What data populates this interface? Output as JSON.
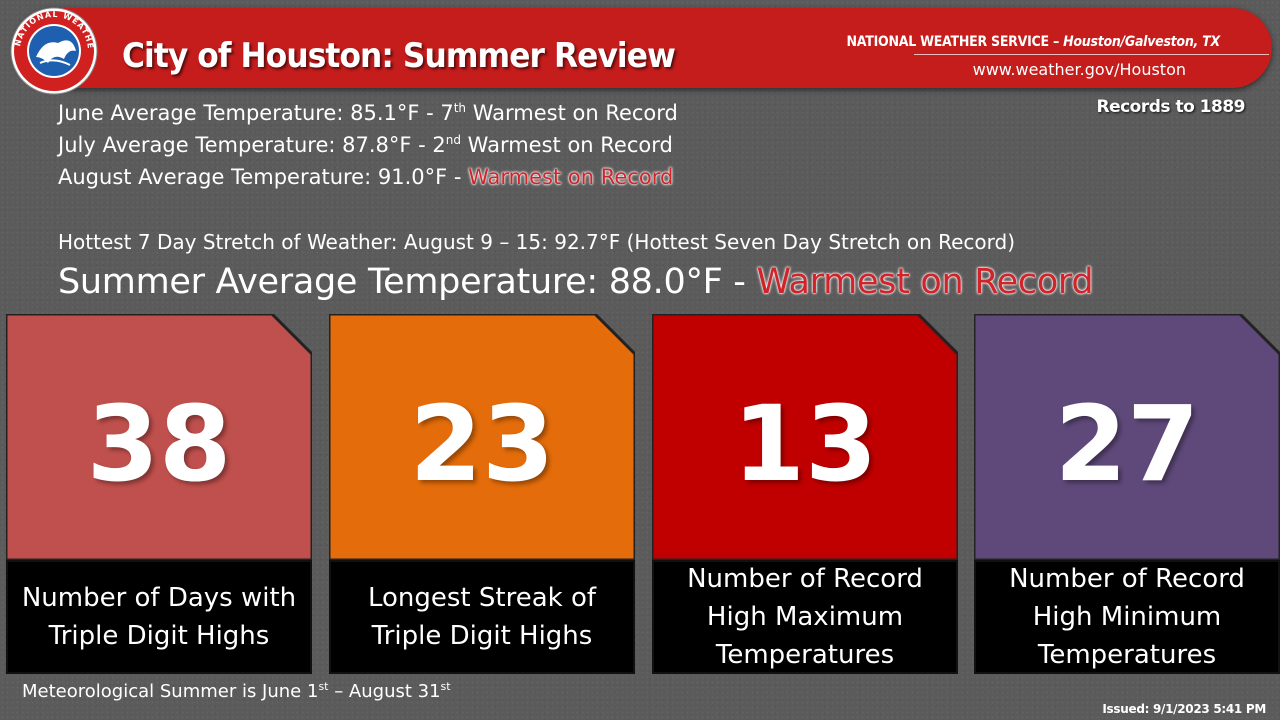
{
  "header": {
    "title": "City of Houston: Summer Review",
    "agency": "NATIONAL WEATHER SERVICE",
    "office": "Houston/Galveston, TX",
    "url": "www.weather.gov/Houston",
    "logo_text": "NATIONAL WEATHER SERVICE",
    "logo_icon": "nws-logo-icon"
  },
  "records_to": "Records to 1889",
  "monthly": [
    {
      "label": "June Average Temperature: 85.1°F  - 7",
      "sup": "th",
      "rest": " Warmest on Record",
      "highlight": ""
    },
    {
      "label": "July Average Temperature: 87.8°F  - 2",
      "sup": "nd",
      "rest": " Warmest on Record",
      "highlight": ""
    },
    {
      "label": "August Average Temperature:  91.0°F  - ",
      "sup": "",
      "rest": "",
      "highlight": "Warmest on Record"
    }
  ],
  "hottest_stretch": "Hottest 7 Day Stretch of Weather: August 9 – 15: 92.7°F (Hottest Seven Day Stretch on Record)",
  "summer_average": {
    "label": "Summer Average Temperature: 88.0°F  - ",
    "highlight": "Warmest on Record"
  },
  "cards": [
    {
      "value": "38",
      "desc_lines": [
        "Number of Days with",
        "Triple Digit Highs"
      ],
      "color": "#c0504d"
    },
    {
      "value": "23",
      "desc_lines": [
        "Longest Streak of",
        "Triple Digit Highs"
      ],
      "color": "#e46c0a"
    },
    {
      "value": "13",
      "desc_lines": [
        "Number of Record",
        "High Maximum",
        "Temperatures"
      ],
      "color": "#c00000"
    },
    {
      "value": "27",
      "desc_lines": [
        "Number of Record",
        "High Minimum",
        "Temperatures"
      ],
      "color": "#5f497a"
    }
  ],
  "footnote": {
    "a": "Meteorological Summer is June 1",
    "a_sup": "st",
    "b": "  – August 31",
    "b_sup": "st"
  },
  "issued": "Issued: 9/1/2023 5:41 PM",
  "colors": {
    "header_red": "#c51c1c",
    "highlight_red": "#d0242a",
    "background": "#5b5b5b"
  }
}
